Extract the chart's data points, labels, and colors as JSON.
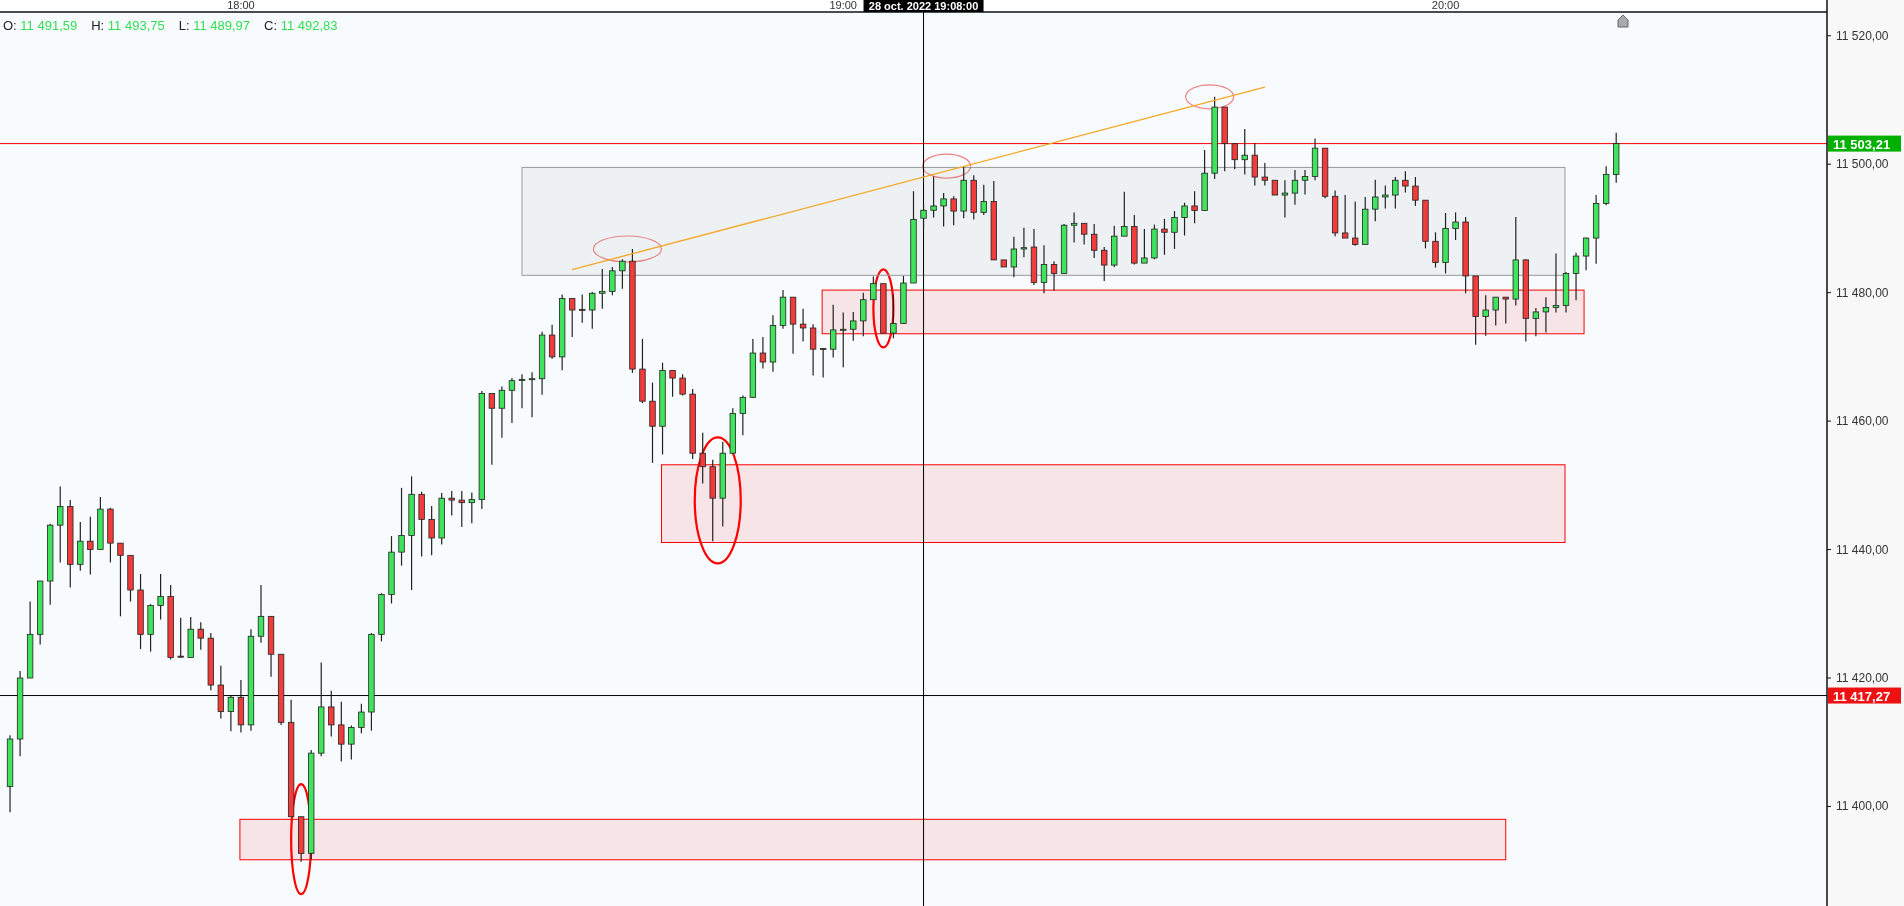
{
  "chart_data": {
    "type": "candlestick",
    "x": [
      "2022-10-28T17:37",
      "2022-10-28T17:38",
      "2022-10-28T17:39",
      "2022-10-28T17:40",
      "2022-10-28T17:41",
      "2022-10-28T17:42",
      "2022-10-28T17:43",
      "2022-10-28T17:44",
      "2022-10-28T17:45",
      "2022-10-28T17:46",
      "2022-10-28T17:47",
      "2022-10-28T17:48",
      "2022-10-28T17:49",
      "2022-10-28T17:50",
      "2022-10-28T17:51",
      "2022-10-28T17:52",
      "2022-10-28T17:53",
      "2022-10-28T17:54",
      "2022-10-28T17:55",
      "2022-10-28T17:56",
      "2022-10-28T17:57",
      "2022-10-28T17:58",
      "2022-10-28T17:59",
      "2022-10-28T18:00",
      "2022-10-28T18:01",
      "2022-10-28T18:02",
      "2022-10-28T18:03",
      "2022-10-28T18:04",
      "2022-10-28T18:05",
      "2022-10-28T18:06",
      "2022-10-28T18:07",
      "2022-10-28T18:08",
      "2022-10-28T18:09",
      "2022-10-28T18:10",
      "2022-10-28T18:11",
      "2022-10-28T18:12",
      "2022-10-28T18:13",
      "2022-10-28T18:14",
      "2022-10-28T18:15",
      "2022-10-28T18:16",
      "2022-10-28T18:17",
      "2022-10-28T18:18",
      "2022-10-28T18:19",
      "2022-10-28T18:20",
      "2022-10-28T18:21",
      "2022-10-28T18:22",
      "2022-10-28T18:23",
      "2022-10-28T18:24",
      "2022-10-28T18:25",
      "2022-10-28T18:26",
      "2022-10-28T18:27",
      "2022-10-28T18:28",
      "2022-10-28T18:29",
      "2022-10-28T18:30",
      "2022-10-28T18:31",
      "2022-10-28T18:32",
      "2022-10-28T18:33",
      "2022-10-28T18:34",
      "2022-10-28T18:35",
      "2022-10-28T18:36",
      "2022-10-28T18:37",
      "2022-10-28T18:38",
      "2022-10-28T18:39",
      "2022-10-28T18:40",
      "2022-10-28T18:41",
      "2022-10-28T18:42",
      "2022-10-28T18:43",
      "2022-10-28T18:44",
      "2022-10-28T18:45",
      "2022-10-28T18:46",
      "2022-10-28T18:47",
      "2022-10-28T18:48",
      "2022-10-28T18:49",
      "2022-10-28T18:50",
      "2022-10-28T18:51",
      "2022-10-28T18:52",
      "2022-10-28T18:53",
      "2022-10-28T18:54",
      "2022-10-28T18:55",
      "2022-10-28T18:56",
      "2022-10-28T18:57",
      "2022-10-28T18:58",
      "2022-10-28T18:59",
      "2022-10-28T19:00",
      "2022-10-28T19:01",
      "2022-10-28T19:02",
      "2022-10-28T19:03",
      "2022-10-28T19:04",
      "2022-10-28T19:05",
      "2022-10-28T19:06",
      "2022-10-28T19:07",
      "2022-10-28T19:08",
      "2022-10-28T19:09",
      "2022-10-28T19:10",
      "2022-10-28T19:11",
      "2022-10-28T19:12",
      "2022-10-28T19:13",
      "2022-10-28T19:14",
      "2022-10-28T19:15",
      "2022-10-28T19:16",
      "2022-10-28T19:17",
      "2022-10-28T19:18",
      "2022-10-28T19:19",
      "2022-10-28T19:20",
      "2022-10-28T19:21",
      "2022-10-28T19:22",
      "2022-10-28T19:23",
      "2022-10-28T19:24",
      "2022-10-28T19:25",
      "2022-10-28T19:26",
      "2022-10-28T19:27",
      "2022-10-28T19:28",
      "2022-10-28T19:29",
      "2022-10-28T19:30",
      "2022-10-28T19:31",
      "2022-10-28T19:32",
      "2022-10-28T19:33",
      "2022-10-28T19:34",
      "2022-10-28T19:35",
      "2022-10-28T19:36",
      "2022-10-28T19:37",
      "2022-10-28T19:38",
      "2022-10-28T19:39",
      "2022-10-28T19:40",
      "2022-10-28T19:41",
      "2022-10-28T19:42",
      "2022-10-28T19:43",
      "2022-10-28T19:44",
      "2022-10-28T19:45",
      "2022-10-28T19:46",
      "2022-10-28T19:47",
      "2022-10-28T19:48",
      "2022-10-28T19:49",
      "2022-10-28T19:50",
      "2022-10-28T19:51",
      "2022-10-28T19:52",
      "2022-10-28T19:53",
      "2022-10-28T19:54",
      "2022-10-28T19:55",
      "2022-10-28T19:56",
      "2022-10-28T19:57",
      "2022-10-28T19:58",
      "2022-10-28T19:59",
      "2022-10-28T20:00",
      "2022-10-28T20:01",
      "2022-10-28T20:02",
      "2022-10-28T20:03",
      "2022-10-28T20:04",
      "2022-10-28T20:05",
      "2022-10-28T20:06",
      "2022-10-28T20:07",
      "2022-10-28T20:08",
      "2022-10-28T20:09",
      "2022-10-28T20:10",
      "2022-10-28T20:11",
      "2022-10-28T20:12",
      "2022-10-28T20:13",
      "2022-10-28T20:14",
      "2022-10-28T20:15",
      "2022-10-28T20:16",
      "2022-10-28T20:17"
    ],
    "ohlc": [
      [
        11403.1,
        11411.1,
        11399.1,
        11410.5
      ],
      [
        11410.5,
        11421.1,
        11407.8,
        11420.0
      ],
      [
        11420.0,
        11431.9,
        11420.0,
        11426.8
      ],
      [
        11426.8,
        11435.1,
        11425.2,
        11435.1
      ],
      [
        11435.1,
        11444.0,
        11431.4,
        11443.8
      ],
      [
        11443.8,
        11449.8,
        11438.0,
        11446.7
      ],
      [
        11446.7,
        11447.7,
        11434.1,
        11437.7
      ],
      [
        11437.7,
        11444.3,
        11436.7,
        11441.3
      ],
      [
        11441.3,
        11445.1,
        11436.1,
        11440.0
      ],
      [
        11440.0,
        11448.2,
        11440.0,
        11446.3
      ],
      [
        11446.3,
        11446.5,
        11438.0,
        11441.0
      ],
      [
        11441.0,
        11441.0,
        11429.6,
        11439.1
      ],
      [
        11439.1,
        11439.1,
        11431.9,
        11433.7
      ],
      [
        11433.7,
        11436.2,
        11424.5,
        11426.8
      ],
      [
        11426.8,
        11431.5,
        11424.1,
        11431.3
      ],
      [
        11431.3,
        11436.2,
        11429.1,
        11432.7
      ],
      [
        11432.7,
        11434.5,
        11422.9,
        11423.2
      ],
      [
        11423.4,
        11429.4,
        11423.1,
        11423.3
      ],
      [
        11423.2,
        11429.5,
        11423.2,
        11427.6
      ],
      [
        11427.6,
        11428.7,
        11424.4,
        11426.2
      ],
      [
        11426.2,
        11427.0,
        11418.1,
        11418.9
      ],
      [
        11418.9,
        11421.9,
        11413.7,
        11414.8
      ],
      [
        11414.8,
        11417.2,
        11411.7,
        11417.0
      ],
      [
        11417.0,
        11419.7,
        11411.5,
        11412.7
      ],
      [
        11412.7,
        11427.6,
        11411.8,
        11426.5
      ],
      [
        11426.5,
        11434.5,
        11425.5,
        11429.6
      ],
      [
        11429.6,
        11429.6,
        11420.2,
        11423.7
      ],
      [
        11423.7,
        11423.7,
        11412.7,
        11413.1
      ],
      [
        11413.1,
        11416.6,
        11398.4,
        11398.4
      ],
      [
        11398.4,
        11398.4,
        11391.4,
        11392.7
      ],
      [
        11392.7,
        11408.8,
        11391.7,
        11408.3
      ],
      [
        11408.3,
        11422.4,
        11407.8,
        11415.5
      ],
      [
        11415.5,
        11418.0,
        11410.9,
        11412.7
      ],
      [
        11412.7,
        11416.3,
        11407.0,
        11409.7
      ],
      [
        11409.7,
        11412.6,
        11407.3,
        11412.3
      ],
      [
        11412.3,
        11416.0,
        11411.4,
        11414.7
      ],
      [
        11414.7,
        11427.0,
        11411.8,
        11426.8
      ],
      [
        11426.8,
        11433.2,
        11425.7,
        11433.0
      ],
      [
        11433.0,
        11442.1,
        11431.6,
        11439.6
      ],
      [
        11439.6,
        11449.6,
        11437.5,
        11442.2
      ],
      [
        11442.2,
        11451.4,
        11433.7,
        11448.6
      ],
      [
        11448.6,
        11449.0,
        11438.9,
        11444.7
      ],
      [
        11444.7,
        11446.8,
        11439.1,
        11441.8
      ],
      [
        11441.8,
        11448.8,
        11440.8,
        11448.0
      ],
      [
        11448.0,
        11449.1,
        11445.3,
        11447.7
      ],
      [
        11447.7,
        11449.1,
        11443.5,
        11447.3
      ],
      [
        11447.3,
        11448.9,
        11444.1,
        11447.8
      ],
      [
        11447.8,
        11464.7,
        11446.3,
        11464.3
      ],
      [
        11464.3,
        11464.3,
        11453.2,
        11462.0
      ],
      [
        11462.0,
        11465.4,
        11457.4,
        11464.8
      ],
      [
        11464.8,
        11466.7,
        11459.7,
        11466.3
      ],
      [
        11466.4,
        11467.3,
        11462.0,
        11466.5
      ],
      [
        11466.5,
        11467.6,
        11460.6,
        11466.6
      ],
      [
        11466.6,
        11473.9,
        11464.1,
        11473.4
      ],
      [
        11473.4,
        11475.0,
        11469.7,
        11470.0
      ],
      [
        11470.0,
        11479.7,
        11467.9,
        11479.1
      ],
      [
        11479.1,
        11479.1,
        11473.1,
        11477.3
      ],
      [
        11477.4,
        11479.7,
        11475.3,
        11477.3
      ],
      [
        11477.3,
        11480.1,
        11474.4,
        11479.9
      ],
      [
        11479.9,
        11483.7,
        11477.5,
        11480.2
      ],
      [
        11480.2,
        11484.0,
        11479.6,
        11483.4
      ],
      [
        11483.4,
        11485.2,
        11480.6,
        11484.9
      ],
      [
        11484.9,
        11486.8,
        11467.5,
        11468.1
      ],
      [
        11468.1,
        11472.8,
        11462.8,
        11463.1
      ],
      [
        11463.1,
        11466.0,
        11453.5,
        11459.2
      ],
      [
        11459.2,
        11469.1,
        11454.8,
        11467.9
      ],
      [
        11467.9,
        11467.9,
        11463.8,
        11466.7
      ],
      [
        11466.7,
        11467.3,
        11464.0,
        11464.2
      ],
      [
        11464.2,
        11465.0,
        11454.1,
        11455.0
      ],
      [
        11455.0,
        11458.2,
        11450.3,
        11452.9
      ],
      [
        11452.9,
        11454.0,
        11441.3,
        11448.0
      ],
      [
        11448.0,
        11456.8,
        11443.6,
        11455.0
      ],
      [
        11455.0,
        11462.0,
        11454.9,
        11461.2
      ],
      [
        11461.2,
        11464.0,
        11457.8,
        11463.7
      ],
      [
        11463.7,
        11472.8,
        11463.6,
        11470.6
      ],
      [
        11470.6,
        11473.1,
        11468.2,
        11469.2
      ],
      [
        11469.2,
        11476.5,
        11467.7,
        11474.9
      ],
      [
        11474.9,
        11480.4,
        11474.4,
        11479.3
      ],
      [
        11479.3,
        11479.3,
        11470.5,
        11475.1
      ],
      [
        11475.1,
        11477.5,
        11472.4,
        11474.5
      ],
      [
        11474.5,
        11475.1,
        11467.1,
        11471.2
      ],
      [
        11471.3,
        11471.4,
        11466.8,
        11471.2
      ],
      [
        11471.2,
        11478.1,
        11469.9,
        11474.2
      ],
      [
        11474.2,
        11476.9,
        11468.4,
        11474.3
      ],
      [
        11474.3,
        11477.0,
        11472.5,
        11475.6
      ],
      [
        11475.6,
        11480.0,
        11473.2,
        11478.9
      ],
      [
        11478.9,
        11482.5,
        11478.9,
        11481.4
      ],
      [
        11481.4,
        11481.4,
        11473.7,
        11473.7
      ],
      [
        11473.7,
        11479.7,
        11472.9,
        11475.2
      ],
      [
        11475.2,
        11482.6,
        11475.2,
        11481.5
      ],
      [
        11481.5,
        11495.8,
        11481.5,
        11491.4
      ],
      [
        11491.59,
        11493.75,
        11489.97,
        11492.83
      ],
      [
        11492.83,
        11498.1,
        11491.7,
        11493.5
      ],
      [
        11493.5,
        11495.5,
        11490.3,
        11494.6
      ],
      [
        11494.6,
        11495.0,
        11490.5,
        11492.7
      ],
      [
        11492.7,
        11499.7,
        11491.6,
        11497.5
      ],
      [
        11497.5,
        11498.3,
        11491.4,
        11492.5
      ],
      [
        11492.5,
        11496.8,
        11492.1,
        11494.2
      ],
      [
        11494.2,
        11497.4,
        11485.1,
        11485.1
      ],
      [
        11485.1,
        11485.1,
        11484.0,
        11484.0
      ],
      [
        11484.0,
        11488.7,
        11482.4,
        11486.8
      ],
      [
        11486.8,
        11490.1,
        11485.5,
        11487.0
      ],
      [
        11487.1,
        11489.9,
        11481.2,
        11481.6
      ],
      [
        11481.6,
        11487.4,
        11479.9,
        11484.4
      ],
      [
        11484.4,
        11484.9,
        11480.3,
        11483.0
      ],
      [
        11483.0,
        11490.7,
        11483.0,
        11490.5
      ],
      [
        11490.5,
        11492.5,
        11487.8,
        11490.8
      ],
      [
        11490.8,
        11490.8,
        11487.5,
        11489.1
      ],
      [
        11489.1,
        11490.7,
        11485.4,
        11486.6
      ],
      [
        11486.6,
        11487.1,
        11481.8,
        11484.3
      ],
      [
        11484.3,
        11490.4,
        11484.0,
        11488.8
      ],
      [
        11488.8,
        11495.7,
        11488.8,
        11490.3
      ],
      [
        11490.3,
        11492.1,
        11484.4,
        11484.6
      ],
      [
        11484.6,
        11489.9,
        11484.6,
        11485.4
      ],
      [
        11485.4,
        11490.6,
        11485.2,
        11489.9
      ],
      [
        11489.9,
        11491.5,
        11485.9,
        11489.4
      ],
      [
        11489.4,
        11492.7,
        11486.8,
        11491.7
      ],
      [
        11491.7,
        11494.0,
        11488.9,
        11493.5
      ],
      [
        11493.5,
        11495.8,
        11490.8,
        11492.8
      ],
      [
        11492.8,
        11502.2,
        11492.8,
        11498.6
      ],
      [
        11498.6,
        11510.5,
        11497.7,
        11508.9
      ],
      [
        11508.9,
        11508.9,
        11498.9,
        11503.2
      ],
      [
        11503.2,
        11503.3,
        11499.2,
        11500.7
      ],
      [
        11500.7,
        11505.5,
        11498.4,
        11501.4
      ],
      [
        11501.4,
        11503.3,
        11496.7,
        11498.0
      ],
      [
        11498.0,
        11500.2,
        11496.7,
        11497.5
      ],
      [
        11497.5,
        11497.5,
        11495.2,
        11495.2
      ],
      [
        11495.2,
        11497.5,
        11491.7,
        11495.5
      ],
      [
        11495.5,
        11499.1,
        11493.7,
        11497.5
      ],
      [
        11497.5,
        11499.1,
        11495.3,
        11498.1
      ],
      [
        11498.1,
        11504.0,
        11497.5,
        11502.5
      ],
      [
        11502.5,
        11502.5,
        11494.7,
        11495.0
      ],
      [
        11495.0,
        11495.9,
        11488.8,
        11489.3
      ],
      [
        11489.3,
        11495.2,
        11488.5,
        11488.5
      ],
      [
        11488.5,
        11494.2,
        11487.3,
        11487.5
      ],
      [
        11487.5,
        11494.9,
        11487.5,
        11493.0
      ],
      [
        11493.0,
        11497.6,
        11491.1,
        11494.9
      ],
      [
        11494.9,
        11496.7,
        11493.1,
        11495.2
      ],
      [
        11495.2,
        11498.0,
        11493.1,
        11497.5
      ],
      [
        11497.5,
        11498.9,
        11495.6,
        11496.6
      ],
      [
        11496.6,
        11498.0,
        11493.5,
        11494.4
      ],
      [
        11494.4,
        11494.4,
        11486.9,
        11488.0
      ],
      [
        11488.0,
        11489.4,
        11483.9,
        11484.7
      ],
      [
        11484.7,
        11492.4,
        11483.0,
        11490.0
      ],
      [
        11490.0,
        11492.5,
        11488.2,
        11491.0
      ],
      [
        11491.0,
        11491.8,
        11479.9,
        11482.6
      ],
      [
        11482.6,
        11482.6,
        11471.9,
        11476.3
      ],
      [
        11476.3,
        11479.6,
        11473.3,
        11477.3
      ],
      [
        11477.3,
        11479.3,
        11474.9,
        11479.3
      ],
      [
        11479.3,
        11479.3,
        11475.2,
        11479.0
      ],
      [
        11479.0,
        11491.8,
        11478.0,
        11485.1
      ],
      [
        11485.1,
        11485.2,
        11472.4,
        11476.0
      ],
      [
        11476.0,
        11477.6,
        11473.2,
        11477.0
      ],
      [
        11477.0,
        11479.3,
        11473.8,
        11477.7
      ],
      [
        11477.7,
        11486.1,
        11476.9,
        11478.0
      ],
      [
        11478.0,
        11483.2,
        11476.9,
        11483.0
      ],
      [
        11483.0,
        11486.2,
        11478.8,
        11485.7
      ],
      [
        11485.7,
        11488.6,
        11483.5,
        11488.5
      ],
      [
        11488.5,
        11495.2,
        11484.5,
        11493.9
      ],
      [
        11493.9,
        11499.7,
        11493.6,
        11498.4
      ],
      [
        11498.4,
        11504.9,
        11497.1,
        11503.21
      ]
    ],
    "series": [
      {
        "type": "line",
        "x": [
          "2022-10-28T18:33",
          "2022-10-28T19:42"
        ],
        "values": [
          11483.6,
          11512.0
        ],
        "color": "#f5a623"
      }
    ],
    "xlim": [
      "2022-10-28T17:36",
      "2022-10-28T20:38"
    ],
    "xticks": [
      {
        "value": "2022-10-28T18:00",
        "label": "18:00"
      },
      {
        "value": "2022-10-28T19:00",
        "label": "19:00"
      },
      {
        "value": "2022-10-28T20:00",
        "label": "20:00"
      }
    ],
    "ylim": [
      11384.5,
      11523.7
    ],
    "yticks": [
      {
        "value": 11400,
        "label": "11 400,00"
      },
      {
        "value": 11420,
        "label": "11 420,00"
      },
      {
        "value": 11440,
        "label": "11 440,00"
      },
      {
        "value": 11460,
        "label": "11 460,00"
      },
      {
        "value": 11480,
        "label": "11 480,00"
      },
      {
        "value": 11500,
        "label": "11 500,00"
      },
      {
        "value": 11520,
        "label": "11 520,00"
      }
    ],
    "ref_lines": [
      {
        "axis": "y",
        "value": 11503.21,
        "label": "11 503,21",
        "color": "#ff0000"
      },
      {
        "axis": "y",
        "value": 11417.27,
        "label": "11 417,27",
        "color": "#000000"
      },
      {
        "axis": "x",
        "value": "2022-10-28T19:08",
        "label": "28 oct. 2022 19:08:00",
        "color": "#000000"
      }
    ],
    "bands": [
      {
        "axis": "y",
        "from": 11482.7,
        "to": 11499.5,
        "color": "#999999"
      },
      {
        "axis": "y",
        "from": 11473.6,
        "to": 11480.4,
        "color": "#ff0000"
      },
      {
        "axis": "y",
        "from": 11441.1,
        "to": 11453.2,
        "color": "#ff0000"
      },
      {
        "axis": "y",
        "from": 11391.7,
        "to": 11398.0,
        "color": "#ff0000"
      }
    ],
    "annotations": [
      "O: 11 491,59",
      "H: 11 493,75",
      "L: 11 489,97",
      "C: 11 492,83"
    ],
    "grid": false
  }
}
